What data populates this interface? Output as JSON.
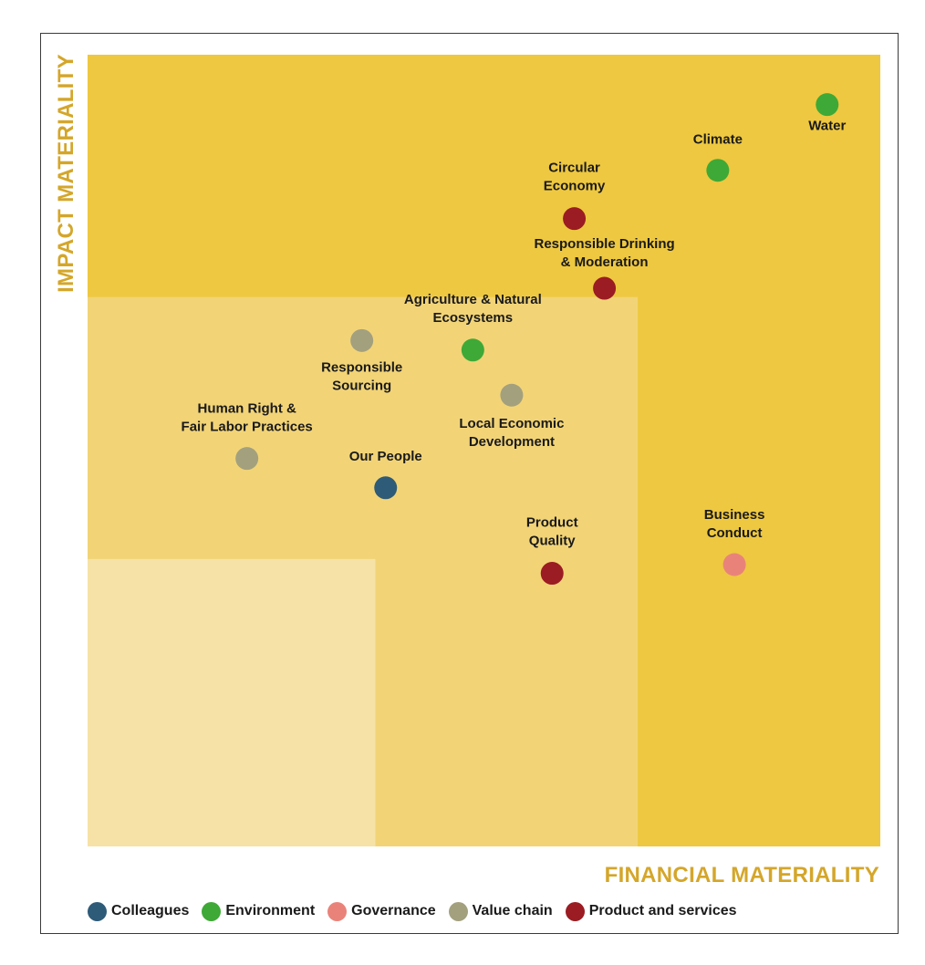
{
  "chart_data": {
    "type": "scatter",
    "title": "",
    "xlabel": "FINANCIAL MATERIALITY",
    "ylabel": "IMPACT MATERIALITY",
    "xlim": [
      0,
      100
    ],
    "ylim": [
      0,
      100
    ],
    "grid": false,
    "legend_position": "bottom-left",
    "zones": [
      {
        "name": "high",
        "x_max": 100,
        "y_max": 100,
        "color": "#EEC840"
      },
      {
        "name": "medium",
        "x_max": 69.4,
        "y_max": 69.4,
        "color": "#F2D477"
      },
      {
        "name": "low",
        "x_max": 36.3,
        "y_max": 36.3,
        "color": "#F6E2A6"
      }
    ],
    "categories": [
      {
        "name": "Colleagues",
        "color": "#2E5B78"
      },
      {
        "name": "Environment",
        "color": "#3EA936"
      },
      {
        "name": "Governance",
        "color": "#E9837A"
      },
      {
        "name": "Value chain",
        "color": "#A3A07E"
      },
      {
        "name": "Product and services",
        "color": "#9B1C22"
      }
    ],
    "points": [
      {
        "label": "Water",
        "category": "Environment",
        "x": 93.3,
        "y": 93.7
      },
      {
        "label": "Climate",
        "category": "Environment",
        "x": 79.5,
        "y": 85.4
      },
      {
        "label": "Circular Economy",
        "category": "Product and services",
        "x": 61.4,
        "y": 79.3
      },
      {
        "label": "Responsible Drinking & Moderation",
        "category": "Product and services",
        "x": 65.2,
        "y": 70.5
      },
      {
        "label": "Agriculture & Natural Ecosystems",
        "category": "Environment",
        "x": 48.6,
        "y": 62.7
      },
      {
        "label": "Responsible Sourcing",
        "category": "Value chain",
        "x": 34.6,
        "y": 63.9
      },
      {
        "label": "Local Economic Development",
        "category": "Value chain",
        "x": 53.5,
        "y": 57.0
      },
      {
        "label": "Human Right & Fair Labor Practices",
        "category": "Value chain",
        "x": 20.1,
        "y": 49.0
      },
      {
        "label": "Our People",
        "category": "Colleagues",
        "x": 37.6,
        "y": 45.3
      },
      {
        "label": "Product Quality",
        "category": "Product and services",
        "x": 58.6,
        "y": 34.5
      },
      {
        "label": "Business Conduct",
        "category": "Governance",
        "x": 81.6,
        "y": 35.6
      }
    ]
  },
  "axis_color": "#D4A62A"
}
